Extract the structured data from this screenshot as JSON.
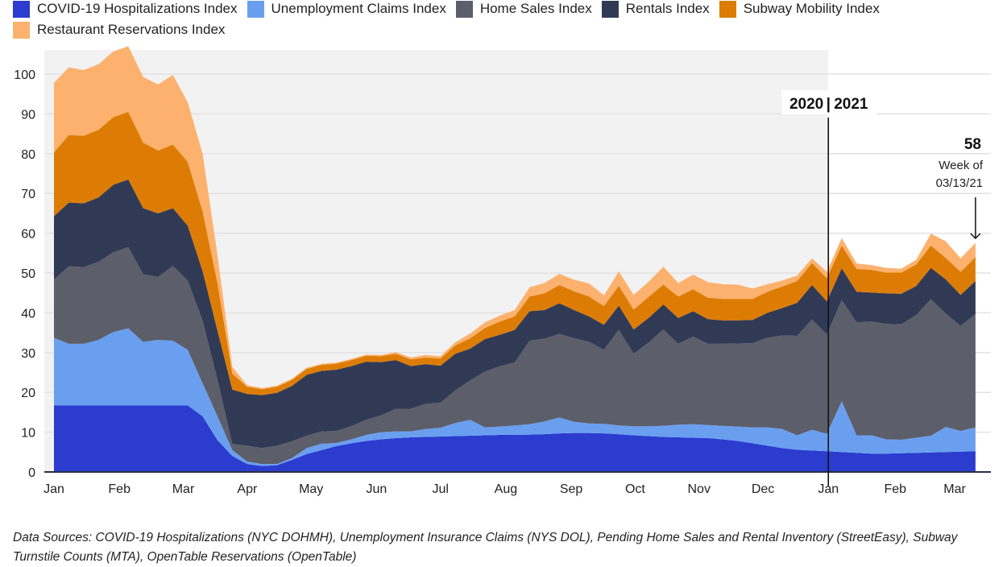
{
  "chart_data": {
    "type": "area",
    "stacked": true,
    "title": "",
    "xlabel": "",
    "ylabel": "",
    "ylim": [
      0,
      105
    ],
    "yticks": [
      0,
      10,
      20,
      30,
      40,
      50,
      60,
      70,
      80,
      90,
      100
    ],
    "grid": true,
    "legend_position": "top",
    "x_tick_labels": [
      "Jan",
      "Feb",
      "Mar",
      "Apr",
      "May",
      "Jun",
      "Jul",
      "Aug",
      "Sep",
      "Oct",
      "Nov",
      "Dec",
      "Jan",
      "Feb",
      "Mar"
    ],
    "x_tick_week_index": [
      0,
      4.4,
      8.7,
      13,
      17.3,
      21.7,
      26,
      30.4,
      34.8,
      39.1,
      43.4,
      47.7,
      52.1,
      56.6,
      60.6
    ],
    "weeks": 63,
    "series": [
      {
        "name": "COVID-19 Hospitalizations Index",
        "color": "#2b3ccf",
        "values": [
          16.7,
          16.7,
          16.7,
          16.7,
          16.7,
          16.7,
          16.7,
          16.7,
          16.7,
          16.7,
          14,
          8,
          4,
          2,
          1.5,
          1.7,
          3,
          4.5,
          5.5,
          6.5,
          7.2,
          7.8,
          8.2,
          8.5,
          8.7,
          8.8,
          8.9,
          9,
          9.1,
          9.2,
          9.3,
          9.3,
          9.4,
          9.5,
          9.7,
          9.8,
          9.8,
          9.7,
          9.5,
          9.2,
          9,
          8.8,
          8.7,
          8.6,
          8.5,
          8.2,
          7.8,
          7.2,
          6.6,
          6,
          5.6,
          5.4,
          5.2,
          5,
          4.8,
          4.6,
          4.6,
          4.7,
          4.8,
          4.9,
          5,
          5.1,
          5.2
        ]
      },
      {
        "name": "Unemployment Claims Index",
        "color": "#6a9ff0",
        "values": [
          17,
          15.5,
          15.5,
          16.5,
          18.5,
          19.4,
          16,
          16.5,
          16.3,
          14,
          8.3,
          6,
          1.5,
          0.6,
          0.5,
          0.3,
          0.5,
          1.5,
          1.6,
          0.8,
          1,
          1.5,
          1.8,
          1.7,
          1.5,
          2,
          2.2,
          3.3,
          4,
          2,
          2.1,
          2.4,
          2.6,
          3.2,
          4,
          2.8,
          2.4,
          2.4,
          2.2,
          2.3,
          2.5,
          2.8,
          3.2,
          3.4,
          3.3,
          3.4,
          3.6,
          4,
          4.6,
          4.8,
          3.6,
          5.2,
          4.4,
          12.8,
          4.4,
          4.6,
          3.6,
          3.4,
          3.8,
          4.2,
          6.3,
          5.2,
          6
        ]
      },
      {
        "name": "Home Sales Index",
        "color": "#5c5e6a",
        "values": [
          14.6,
          19.5,
          19.3,
          19.6,
          20,
          20.4,
          17,
          15.8,
          18.8,
          17.4,
          15.7,
          9.2,
          1.5,
          4,
          4,
          4.6,
          4.2,
          3.1,
          3.1,
          3,
          3.3,
          3.8,
          4.2,
          5.7,
          5.7,
          6.3,
          6.3,
          8.2,
          9.9,
          14,
          15.2,
          15.8,
          21,
          20.8,
          21,
          21,
          20.5,
          18.6,
          24,
          18.2,
          21,
          24.2,
          20.3,
          22,
          20.4,
          20.6,
          20.9,
          21.2,
          22.5,
          23.5,
          25,
          27.7,
          25,
          25.4,
          28.4,
          28.6,
          29,
          29,
          30.8,
          34.3,
          28.5,
          26.4,
          28.5
        ]
      },
      {
        "name": "Rentals Index",
        "color": "#313a55",
        "values": [
          16,
          16,
          16,
          16.2,
          17,
          17,
          16.6,
          16,
          14.5,
          13.8,
          12.5,
          12.3,
          13.7,
          13,
          13.3,
          13.3,
          13.9,
          15.3,
          15.2,
          15.4,
          15.1,
          14.6,
          13.4,
          12.2,
          10.7,
          10,
          9.3,
          9.2,
          8,
          8.2,
          7.9,
          8.2,
          7.4,
          7.2,
          7.7,
          7.1,
          6.4,
          6.3,
          6.1,
          6.1,
          6.2,
          6.3,
          6.5,
          6.4,
          6.2,
          5.9,
          5.8,
          5.8,
          6.3,
          6.9,
          8.3,
          8.7,
          8.3,
          8,
          7.7,
          7.3,
          7.7,
          7.7,
          7.3,
          7.9,
          8.6,
          7.8,
          8.3
        ]
      },
      {
        "name": "Subway Mobility Index",
        "color": "#dd7c04",
        "values": [
          16,
          17,
          17,
          17,
          17,
          17,
          16.5,
          15.8,
          16,
          16,
          15,
          12,
          4,
          1.8,
          1.5,
          1.5,
          1.5,
          1.5,
          1.5,
          1.5,
          1.5,
          1.5,
          1.5,
          1.6,
          1.7,
          1.7,
          1.8,
          2.1,
          2.6,
          2.8,
          3.3,
          3.4,
          3.7,
          4.2,
          4.6,
          4.7,
          5,
          4.7,
          5,
          5,
          5.3,
          5,
          5.4,
          5.5,
          5.4,
          5.4,
          5.4,
          5.3,
          5.3,
          5.4,
          5.5,
          5.5,
          5.8,
          5.7,
          5.7,
          5.7,
          5.2,
          5.3,
          5.4,
          5.6,
          5.4,
          5.8,
          6
        ]
      },
      {
        "name": "Restaurant Reservations Index",
        "color": "#fcb26e",
        "values": [
          17.5,
          17,
          16.5,
          16.5,
          16.5,
          16.5,
          16.5,
          16.6,
          17.5,
          15,
          14.5,
          7,
          1.7,
          0.4,
          0.3,
          0.3,
          0.3,
          0.3,
          0.3,
          0.3,
          0.3,
          0.3,
          0.3,
          0.4,
          0.5,
          0.6,
          0.6,
          0.8,
          1.2,
          1.4,
          1.5,
          1.6,
          2.3,
          2.6,
          2.8,
          2.9,
          3.3,
          2.7,
          3.6,
          3.7,
          3.8,
          4.5,
          3.4,
          3.7,
          3.9,
          3.7,
          3.6,
          2.6,
          1.9,
          1.5,
          1.4,
          1.2,
          1.6,
          1.9,
          1.4,
          1.2,
          1.2,
          1.0,
          1.2,
          3.0,
          4.2,
          3.4,
          3.6
        ]
      }
    ],
    "annotations": {
      "year_divider_label_left": "2020",
      "year_divider_label_sep": "|",
      "year_divider_label_right": "2021",
      "year_divider_week_index": 52.1,
      "shaded_region": "2020",
      "latest_value": "58",
      "latest_caption_line1": "Week of",
      "latest_caption_line2": "03/13/21"
    }
  },
  "source_text": "Data Sources: COVID-19 Hospitalizations (NYC DOHMH), Unemployment Insurance Claims (NYS DOL), Pending Home Sales and Rental Inventory (StreetEasy), Subway Turnstile Counts (MTA), OpenTable Reservations (OpenTable)"
}
